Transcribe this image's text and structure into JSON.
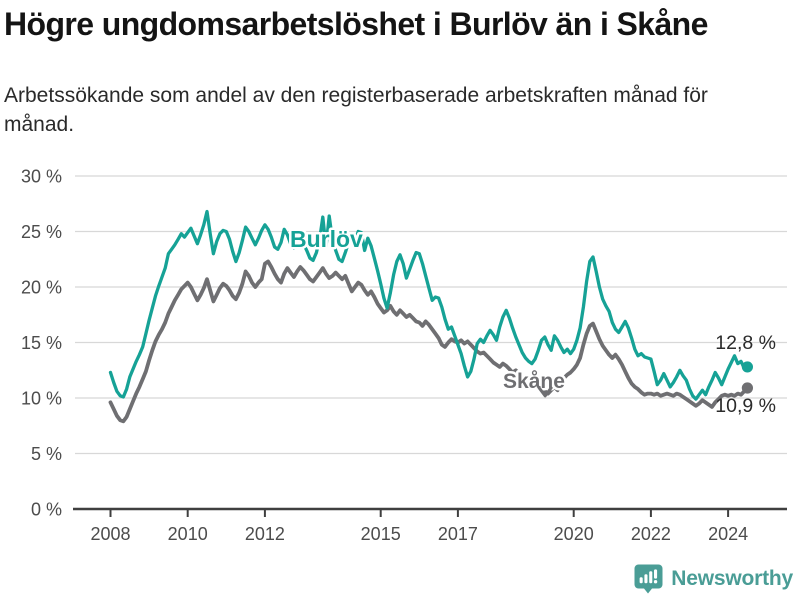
{
  "header": {
    "title": "Högre ungdomsarbetslöshet i Burlöv än i Skåne",
    "subtitle": "Arbetssökande som andel av den registerbaserade arbetskraften månad för månad."
  },
  "branding": {
    "name": "Newsworthy",
    "logo_icon": "bar-chart-speech-bubble-icon",
    "color": "#4a9d96"
  },
  "chart_data": {
    "type": "line",
    "title": "Högre ungdomsarbetslöshet i Burlöv än i Skåne",
    "subtitle": "Arbetssökande som andel av den registerbaserade arbetskraften månad för månad.",
    "unit": "%",
    "x_start": "2008-01",
    "x_end": "2024-07",
    "points_per_year": 12,
    "ylim": [
      0,
      30
    ],
    "grid": "horizontal",
    "y_tick_values": [
      0,
      5,
      10,
      15,
      20,
      25,
      30
    ],
    "y_tick_labels": [
      "0 %",
      "5 %",
      "10 %",
      "15 %",
      "20 %",
      "25 %",
      "30 %"
    ],
    "x_tick_years": [
      2008,
      2010,
      2012,
      2015,
      2017,
      2020,
      2022,
      2024
    ],
    "x_tick_labels": [
      "2008",
      "2010",
      "2012",
      "2015",
      "2017",
      "2020",
      "2022",
      "2024"
    ],
    "colors": {
      "grid": "#d8d8d8",
      "axis": "#3f3f3f",
      "tick_text": "#4c4c4c",
      "end_label_text": "#2b2b2b"
    },
    "series": [
      {
        "name": "Skåne",
        "color": "#6f6f72",
        "stroke_width": 3.8,
        "end_label": "10,9 %",
        "end_value": 10.9,
        "values": [
          9.6,
          9.0,
          8.4,
          8.0,
          7.9,
          8.3,
          9.0,
          9.7,
          10.4,
          11.0,
          11.7,
          12.4,
          13.4,
          14.3,
          15.1,
          15.7,
          16.2,
          16.8,
          17.6,
          18.2,
          18.8,
          19.3,
          19.8,
          20.1,
          20.4,
          20.0,
          19.4,
          18.8,
          19.3,
          19.9,
          20.7,
          19.7,
          18.7,
          19.3,
          19.9,
          20.3,
          20.1,
          19.7,
          19.2,
          18.9,
          19.5,
          20.3,
          21.4,
          21.0,
          20.4,
          20.0,
          20.4,
          20.7,
          22.1,
          22.3,
          21.8,
          21.2,
          20.7,
          20.4,
          21.2,
          21.7,
          21.3,
          20.9,
          21.4,
          21.8,
          21.5,
          21.1,
          20.7,
          20.5,
          20.9,
          21.3,
          21.7,
          21.2,
          20.8,
          21.0,
          21.3,
          21.0,
          20.7,
          21.0,
          20.3,
          19.6,
          20.0,
          20.4,
          20.2,
          19.7,
          19.3,
          19.6,
          19.1,
          18.5,
          18.1,
          17.7,
          17.9,
          18.3,
          17.8,
          17.5,
          17.9,
          17.6,
          17.3,
          17.5,
          17.2,
          16.9,
          16.8,
          16.5,
          16.9,
          16.6,
          16.2,
          15.8,
          15.4,
          14.8,
          14.6,
          15.0,
          15.3,
          15.1,
          15.0,
          15.2,
          14.9,
          15.1,
          14.8,
          14.5,
          14.2,
          14.0,
          14.1,
          13.8,
          13.5,
          13.2,
          13.0,
          12.8,
          13.1,
          12.9,
          12.6,
          12.3,
          12.5,
          12.2,
          11.9,
          11.7,
          11.9,
          11.6,
          11.4,
          11.1,
          10.8,
          10.6,
          10.4,
          10.7,
          11.0,
          10.7,
          11.3,
          11.8,
          12.1,
          12.3,
          12.6,
          13.0,
          13.6,
          14.8,
          15.8,
          16.5,
          16.7,
          16.0,
          15.3,
          14.7,
          14.3,
          13.9,
          13.6,
          13.9,
          13.5,
          13.0,
          12.4,
          11.8,
          11.3,
          11.0,
          10.8,
          10.5,
          10.3,
          10.4,
          10.4,
          10.3,
          10.4,
          10.2,
          10.3,
          10.4,
          10.3,
          10.2,
          10.4,
          10.3,
          10.1,
          9.9,
          9.7,
          9.5,
          9.3,
          9.5,
          9.8,
          9.6,
          9.4,
          9.2,
          9.6,
          9.9,
          10.2,
          10.3,
          10.2,
          10.3,
          10.2,
          10.4,
          10.3,
          10.6,
          10.9
        ]
      },
      {
        "name": "Burlöv",
        "color": "#16a296",
        "stroke_width": 3.3,
        "end_label": "12,8 %",
        "end_value": 12.8,
        "values": [
          12.3,
          11.4,
          10.6,
          10.2,
          10.1,
          10.8,
          11.9,
          12.6,
          13.3,
          13.9,
          14.6,
          15.8,
          17.0,
          18.1,
          19.2,
          20.1,
          20.9,
          21.7,
          23.0,
          23.4,
          23.8,
          24.3,
          24.8,
          24.5,
          24.9,
          25.3,
          24.6,
          23.9,
          24.7,
          25.6,
          26.8,
          24.8,
          23.0,
          24.1,
          24.8,
          25.1,
          25.0,
          24.3,
          23.2,
          22.3,
          23.1,
          24.2,
          25.4,
          25.0,
          24.4,
          23.8,
          24.4,
          25.1,
          25.6,
          25.2,
          24.5,
          23.6,
          23.4,
          24.0,
          25.2,
          24.7,
          23.9,
          23.5,
          23.8,
          24.1,
          23.9,
          23.3,
          22.6,
          22.4,
          23.1,
          24.3,
          26.3,
          23.6,
          26.4,
          24.2,
          23.3,
          22.5,
          22.3,
          23.1,
          24.0,
          24.5,
          24.1,
          25.0,
          24.9,
          23.3,
          24.4,
          23.7,
          22.6,
          21.5,
          20.3,
          19.0,
          18.1,
          19.5,
          21.1,
          22.3,
          22.9,
          22.1,
          20.8,
          21.6,
          22.4,
          23.1,
          23.0,
          22.1,
          21.0,
          19.9,
          18.8,
          19.1,
          19.0,
          18.2,
          17.1,
          16.2,
          16.4,
          15.6,
          14.8,
          14.0,
          12.9,
          11.9,
          12.4,
          13.5,
          14.9,
          15.3,
          15.0,
          15.6,
          16.1,
          15.7,
          15.2,
          16.4,
          17.3,
          17.9,
          17.2,
          16.3,
          15.5,
          14.8,
          14.1,
          13.6,
          13.3,
          13.1,
          13.5,
          14.3,
          15.2,
          15.5,
          14.8,
          14.3,
          15.6,
          15.2,
          14.6,
          14.1,
          14.4,
          14.0,
          14.4,
          15.2,
          16.3,
          18.2,
          20.5,
          22.3,
          22.7,
          21.4,
          20.0,
          18.9,
          18.3,
          17.8,
          16.8,
          16.2,
          15.9,
          16.4,
          16.9,
          16.3,
          15.4,
          14.4,
          13.8,
          14.0,
          13.7,
          13.6,
          13.5,
          12.4,
          11.2,
          11.6,
          12.2,
          11.6,
          11.0,
          11.4,
          11.9,
          12.5,
          12.0,
          11.6,
          10.8,
          10.2,
          9.9,
          10.3,
          10.7,
          10.3,
          11.0,
          11.6,
          12.3,
          11.8,
          11.2,
          11.9,
          12.6,
          13.2,
          13.8,
          13.1,
          13.3,
          12.7,
          12.8
        ]
      }
    ],
    "annotations": [
      {
        "text": "Burlöv",
        "year": 2012.65,
        "value": 23.6,
        "color": "#16a296",
        "size": 23
      },
      {
        "text": "Skåne",
        "year": 2018.17,
        "value": 10.9,
        "color": "#6f6f72",
        "size": 21
      },
      {
        "icon": "chevron-down",
        "year": 2019.26,
        "value": 10.55,
        "color": "#6f6f72"
      }
    ],
    "legend_position": "inline-labels"
  }
}
